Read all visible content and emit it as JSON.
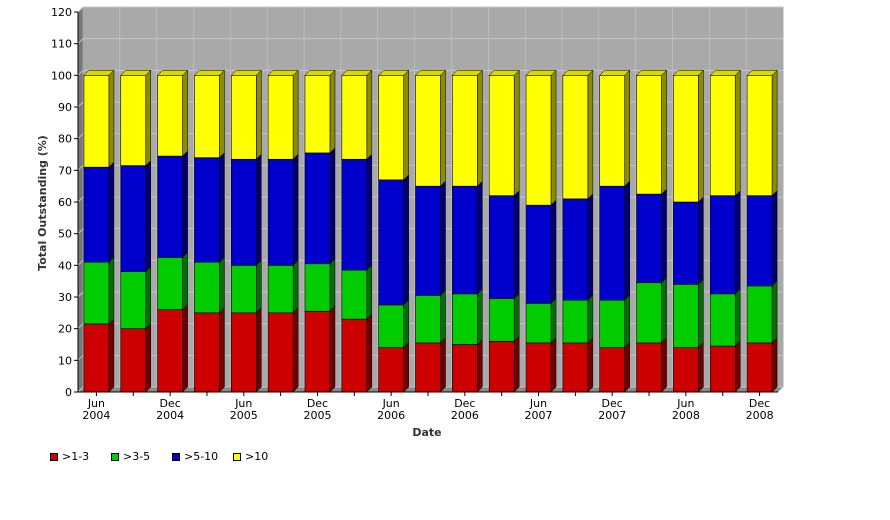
{
  "chart_data": {
    "type": "bar",
    "stacked": true,
    "three_d": true,
    "xlabel": "Date",
    "ylabel": "Total Outstanding (%)",
    "ylim": [
      0,
      120
    ],
    "y_ticks": [
      0,
      10,
      20,
      30,
      40,
      50,
      60,
      70,
      80,
      90,
      100,
      110,
      120
    ],
    "grid": true,
    "legend_position": "bottom-left",
    "x_labels": [
      {
        "line1": "Jun",
        "line2": "2004"
      },
      {
        "line1": "Dec",
        "line2": "2004"
      },
      {
        "line1": "Jun",
        "line2": "2005"
      },
      {
        "line1": "Dec",
        "line2": "2005"
      },
      {
        "line1": "Jun",
        "line2": "2006"
      },
      {
        "line1": "Dec",
        "line2": "2006"
      },
      {
        "line1": "Jun",
        "line2": "2007"
      },
      {
        "line1": "Dec",
        "line2": "2007"
      },
      {
        "line1": "Jun",
        "line2": "2008"
      },
      {
        "line1": "Dec",
        "line2": "2008"
      }
    ],
    "x_label_every": 2,
    "bar_count": 19,
    "series": [
      {
        "name": ">1-3",
        "color": "#cc0000",
        "values": [
          21.5,
          20,
          26,
          25,
          25,
          25,
          25.5,
          23,
          14,
          15.5,
          15,
          16,
          15.5,
          15.5,
          14,
          15.5,
          14,
          14.5,
          15.5
        ]
      },
      {
        "name": ">3-5",
        "color": "#00cc00",
        "values": [
          19.5,
          18,
          16.5,
          16,
          15,
          15,
          15,
          15.5,
          13.5,
          15,
          16,
          13.5,
          12.5,
          13.5,
          15,
          19,
          20,
          16.5,
          18
        ]
      },
      {
        "name": ">5-10",
        "color": "#0000cc",
        "values": [
          30,
          33.5,
          32,
          33,
          33.5,
          33.5,
          35,
          35,
          39.5,
          34.5,
          34,
          32.5,
          31,
          32,
          36,
          28,
          26,
          31,
          28.5
        ]
      },
      {
        "name": ">10",
        "color": "#ffff00",
        "values": [
          29,
          28.5,
          25.5,
          26,
          26.5,
          26.5,
          24.5,
          26.5,
          33,
          35,
          35,
          38,
          41,
          39,
          35,
          37.5,
          40,
          38,
          38
        ]
      }
    ]
  }
}
